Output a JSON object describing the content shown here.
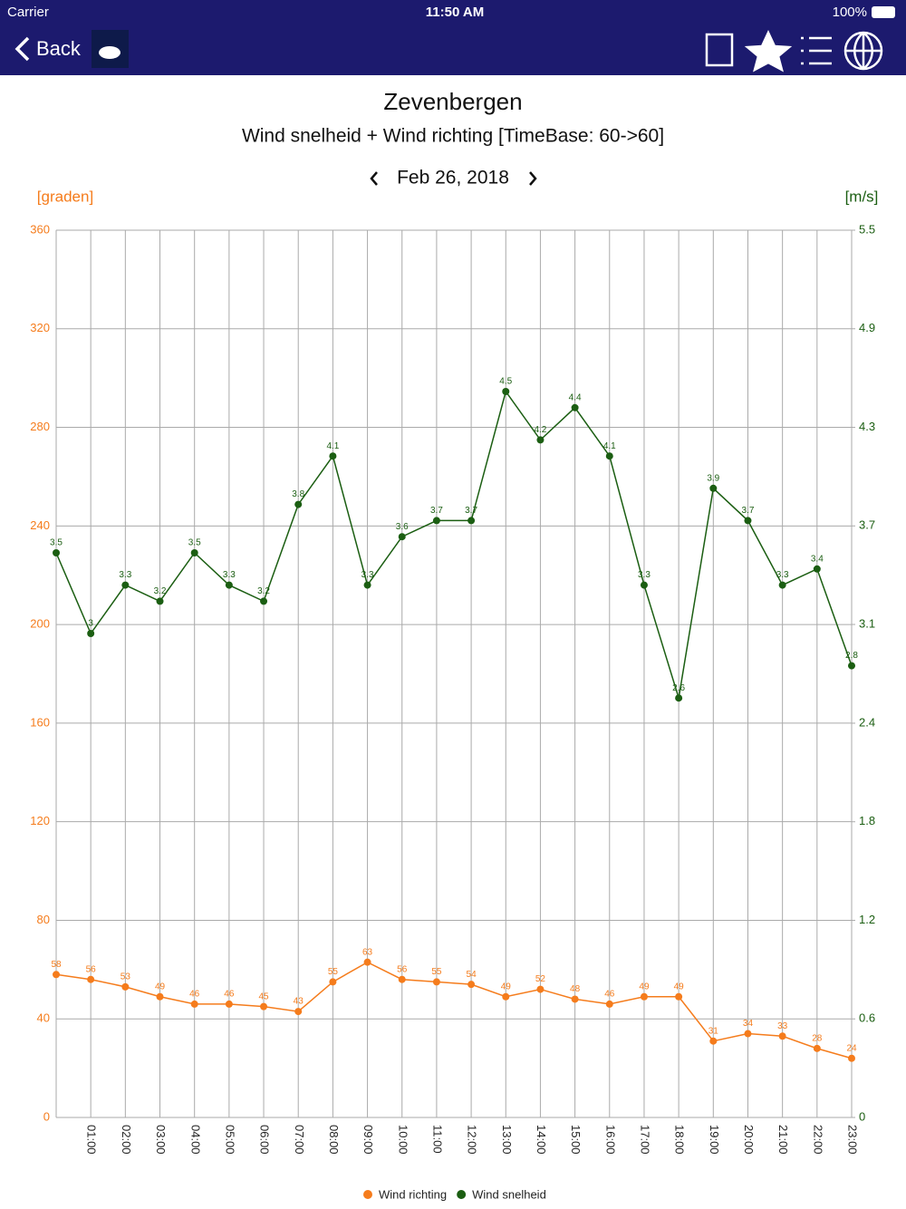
{
  "status_bar": {
    "carrier": "Carrier",
    "time": "11:50 AM",
    "battery": "100%"
  },
  "nav": {
    "back": "Back"
  },
  "date_nav": {
    "date": "Feb 26, 2018"
  },
  "chart_data": {
    "type": "line",
    "title": "Zevenbergen",
    "subtitle": "Wind snelheid + Wind richting [TimeBase: 60->60]",
    "y_label": "[graden]",
    "y2_label": "[m/s]",
    "categories": [
      null,
      "01:00",
      "02:00",
      "03:00",
      "04:00",
      "05:00",
      "06:00",
      "07:00",
      "08:00",
      "09:00",
      "10:00",
      "11:00",
      "12:00",
      "13:00",
      "14:00",
      "15:00",
      "16:00",
      "17:00",
      "18:00",
      "19:00",
      "20:00",
      "21:00",
      "22:00",
      "23:00"
    ],
    "series": [
      {
        "name": "Wind richting",
        "color": "#f57c1c",
        "values": [
          58,
          56,
          53,
          49,
          46,
          46,
          45,
          43,
          55,
          63,
          56,
          55,
          54,
          49,
          52,
          48,
          46,
          49,
          49,
          31,
          34,
          33,
          28,
          24
        ]
      },
      {
        "name": "Wind snelheid",
        "color": "#1b5e12",
        "axis": "y2",
        "values": [
          3.5,
          3,
          3.3,
          3.2,
          3.5,
          3.3,
          3.2,
          3.8,
          4.1,
          3.3,
          3.6,
          3.7,
          3.7,
          4.5,
          4.2,
          4.4,
          4.1,
          3.3,
          2.6,
          3.9,
          3.7,
          3.3,
          3.4,
          2.8
        ]
      }
    ],
    "ylim": [
      0,
      360
    ],
    "yticks": [
      0,
      40,
      80,
      120,
      160,
      200,
      240,
      280,
      320,
      360
    ],
    "y2lim": [
      0,
      5.5
    ],
    "y2ticks": [
      0,
      {
        "value": 0.611,
        "label": "0.6"
      },
      {
        "value": 1.222,
        "label": "1.2"
      },
      {
        "value": 1.833,
        "label": "1.8"
      },
      {
        "value": 2.444,
        "label": "2.4"
      },
      {
        "value": 3.056,
        "label": "3.1"
      },
      {
        "value": 3.667,
        "label": "3.7"
      },
      {
        "value": 4.278,
        "label": "4.3"
      },
      {
        "value": 4.889,
        "label": "4.9"
      },
      5.5
    ],
    "grid": true,
    "legend": "bottom"
  }
}
